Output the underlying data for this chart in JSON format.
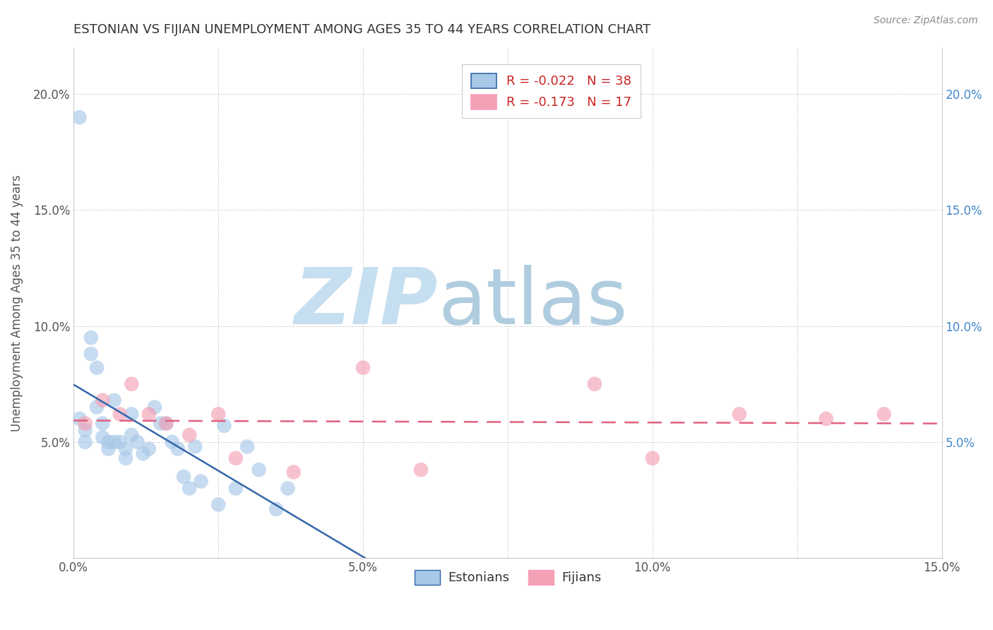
{
  "title": "ESTONIAN VS FIJIAN UNEMPLOYMENT AMONG AGES 35 TO 44 YEARS CORRELATION CHART",
  "source": "Source: ZipAtlas.com",
  "ylabel": "Unemployment Among Ages 35 to 44 years",
  "xlim": [
    0.0,
    0.15
  ],
  "ylim": [
    0.0,
    0.22
  ],
  "estonian_color": "#a8c8e8",
  "fijian_color": "#f4a0b5",
  "estonian_line_color": "#3366aa",
  "fijian_line_color": "#e06080",
  "legend_r_estonian": "-0.022",
  "legend_n_estonian": "38",
  "legend_r_fijian": "-0.173",
  "legend_n_fijian": "17",
  "estonian_x": [
    0.001,
    0.001,
    0.002,
    0.002,
    0.003,
    0.003,
    0.004,
    0.004,
    0.005,
    0.005,
    0.006,
    0.006,
    0.007,
    0.007,
    0.008,
    0.009,
    0.009,
    0.01,
    0.01,
    0.011,
    0.012,
    0.013,
    0.014,
    0.015,
    0.016,
    0.017,
    0.018,
    0.019,
    0.02,
    0.021,
    0.022,
    0.025,
    0.026,
    0.028,
    0.03,
    0.032,
    0.035,
    0.037
  ],
  "estonian_y": [
    0.19,
    0.06,
    0.055,
    0.05,
    0.095,
    0.088,
    0.082,
    0.065,
    0.058,
    0.052,
    0.05,
    0.047,
    0.068,
    0.05,
    0.05,
    0.047,
    0.043,
    0.062,
    0.053,
    0.05,
    0.045,
    0.047,
    0.065,
    0.058,
    0.058,
    0.05,
    0.047,
    0.035,
    0.03,
    0.048,
    0.033,
    0.023,
    0.057,
    0.03,
    0.048,
    0.038,
    0.021,
    0.03
  ],
  "fijian_x": [
    0.002,
    0.005,
    0.008,
    0.01,
    0.013,
    0.016,
    0.02,
    0.025,
    0.028,
    0.038,
    0.05,
    0.06,
    0.09,
    0.1,
    0.115,
    0.13,
    0.14
  ],
  "fijian_y": [
    0.058,
    0.068,
    0.062,
    0.075,
    0.062,
    0.058,
    0.053,
    0.062,
    0.043,
    0.037,
    0.082,
    0.038,
    0.075,
    0.043,
    0.062,
    0.06,
    0.062
  ]
}
